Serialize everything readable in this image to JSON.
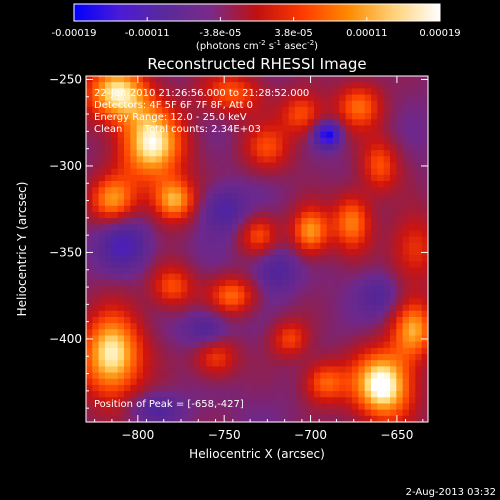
{
  "colorbar": {
    "tick_labels": [
      "-0.00019",
      "-0.00011",
      "-3.8e-05",
      "3.8e-05",
      "0.00011",
      "0.00019"
    ],
    "unit_main": "(photons cm",
    "unit_exp1": "-2",
    "unit_mid": " s",
    "unit_exp2": "-1",
    "unit_tail": " asec",
    "unit_exp3": "-2",
    "unit_close": ")",
    "colors": [
      "#0000ff",
      "#4b1bd6",
      "#5a2a9a",
      "#7a2a88",
      "#c01010",
      "#ff3a00",
      "#ff8a00",
      "#ffd27a",
      "#ffffff"
    ]
  },
  "plot": {
    "title": "Reconstructed RHESSI Image",
    "info_lines": [
      "22-Jan-2010 21:26:56.000 to 21:28:52.000",
      "Detectors: 4F 5F 6F 7F 8F, Att 0",
      "Energy Range: 12.0 - 25.0 keV",
      "Clean       Total counts: 2.34E+03"
    ],
    "peak_label": "Position of Peak = [-658,-427]"
  },
  "footer": {
    "date": "2-Aug-2013 03:32"
  },
  "chart_data": {
    "type": "heatmap",
    "title": "Reconstructed RHESSI Image",
    "xlabel": "Heliocentric X (arcsec)",
    "ylabel": "Heliocentric Y (arcsec)",
    "xlim": [
      -830,
      -632
    ],
    "ylim": [
      -448,
      -248
    ],
    "xticks": [
      -800,
      -750,
      -700,
      -650
    ],
    "yticks": [
      -250,
      -300,
      -350,
      -400
    ],
    "colorbar_range": [
      -0.00019,
      0.00019
    ],
    "blobs": [
      {
        "x": -812,
        "y": -258,
        "sx": 14,
        "sy": 12,
        "v": 0.00016
      },
      {
        "x": -792,
        "y": -288,
        "sx": 14,
        "sy": 16,
        "v": 0.00017
      },
      {
        "x": -815,
        "y": -320,
        "sx": 10,
        "sy": 10,
        "v": 0.00012
      },
      {
        "x": -779,
        "y": -320,
        "sx": 9,
        "sy": 9,
        "v": 0.00014
      },
      {
        "x": -745,
        "y": -258,
        "sx": 13,
        "sy": 9,
        "v": 0.0001
      },
      {
        "x": -725,
        "y": -290,
        "sx": 10,
        "sy": 10,
        "v": 9e-05
      },
      {
        "x": -705,
        "y": -270,
        "sx": 9,
        "sy": 9,
        "v": 0.0001
      },
      {
        "x": -672,
        "y": -265,
        "sx": 10,
        "sy": 10,
        "v": 0.00011
      },
      {
        "x": -660,
        "y": -300,
        "sx": 8,
        "sy": 11,
        "v": 0.0001
      },
      {
        "x": -700,
        "y": -338,
        "sx": 8,
        "sy": 10,
        "v": 0.00014
      },
      {
        "x": -676,
        "y": -332,
        "sx": 8,
        "sy": 12,
        "v": 0.00012
      },
      {
        "x": -640,
        "y": -348,
        "sx": 10,
        "sy": 14,
        "v": 9e-05
      },
      {
        "x": -745,
        "y": -375,
        "sx": 10,
        "sy": 8,
        "v": 0.00011
      },
      {
        "x": -780,
        "y": -370,
        "sx": 9,
        "sy": 9,
        "v": 0.0001
      },
      {
        "x": -730,
        "y": -340,
        "sx": 8,
        "sy": 8,
        "v": 9e-05
      },
      {
        "x": -815,
        "y": -410,
        "sx": 13,
        "sy": 18,
        "v": 0.00018
      },
      {
        "x": -755,
        "y": -410,
        "sx": 9,
        "sy": 9,
        "v": 0.0001
      },
      {
        "x": -712,
        "y": -400,
        "sx": 8,
        "sy": 8,
        "v": 9e-05
      },
      {
        "x": -692,
        "y": -425,
        "sx": 9,
        "sy": 9,
        "v": 0.00011
      },
      {
        "x": -658,
        "y": -427,
        "sx": 13,
        "sy": 15,
        "v": 0.00019
      },
      {
        "x": -640,
        "y": -395,
        "sx": 9,
        "sy": 12,
        "v": 0.00013
      },
      {
        "x": -690,
        "y": -282,
        "sx": 5,
        "sy": 5,
        "v": -0.00019
      },
      {
        "x": -808,
        "y": -345,
        "sx": 10,
        "sy": 10,
        "v": -9e-05
      },
      {
        "x": -750,
        "y": -325,
        "sx": 9,
        "sy": 9,
        "v": -8e-05
      },
      {
        "x": -760,
        "y": -395,
        "sx": 9,
        "sy": 8,
        "v": -8e-05
      },
      {
        "x": -720,
        "y": -360,
        "sx": 9,
        "sy": 9,
        "v": -7e-05
      },
      {
        "x": -660,
        "y": -375,
        "sx": 8,
        "sy": 8,
        "v": -6e-05
      },
      {
        "x": -790,
        "y": -440,
        "sx": 10,
        "sy": 6,
        "v": -7e-05
      }
    ]
  }
}
